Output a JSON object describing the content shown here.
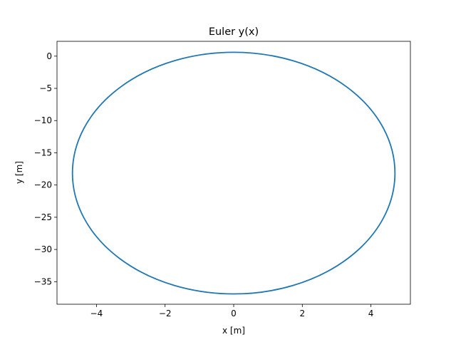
{
  "chart_data": {
    "type": "line",
    "title": "Euler y(x)",
    "xlabel": "x [m]",
    "ylabel": "y [m]",
    "xlim": [
      -5.15,
      5.15
    ],
    "ylim": [
      -38.5,
      2.3
    ],
    "xticks": [
      -4,
      -2,
      0,
      2,
      4
    ],
    "xtick_labels": [
      "−4",
      "−2",
      "0",
      "2",
      "4"
    ],
    "yticks": [
      0,
      -5,
      -10,
      -15,
      -20,
      -25,
      -30,
      -35
    ],
    "ytick_labels": [
      "0",
      "−5",
      "−10",
      "−15",
      "−20",
      "−25",
      "−30",
      "−35"
    ],
    "grid": false,
    "series": [
      {
        "color": "#1f77b4",
        "shape": "closed ellipse",
        "center": [
          0,
          -18.1
        ],
        "x_range": [
          -4.7,
          4.7
        ],
        "y_range": [
          -36.9,
          0.6
        ],
        "x": [
          4.7,
          4.54,
          4.07,
          3.32,
          2.35,
          1.22,
          0.0,
          -1.22,
          -2.35,
          -3.32,
          -4.07,
          -4.54,
          -4.7,
          -4.54,
          -4.07,
          -3.32,
          -2.35,
          -1.22,
          0.0,
          1.22,
          2.35,
          3.32,
          4.07,
          4.54,
          4.7
        ],
        "y": [
          -18.1,
          -13.2,
          -8.7,
          -4.8,
          -1.9,
          -0.1,
          0.6,
          -0.1,
          -1.9,
          -4.8,
          -8.7,
          -13.2,
          -18.1,
          -23.0,
          -27.5,
          -31.4,
          -34.3,
          -36.2,
          -36.9,
          -36.2,
          -34.3,
          -31.4,
          -27.5,
          -23.0,
          -18.1
        ]
      }
    ]
  }
}
